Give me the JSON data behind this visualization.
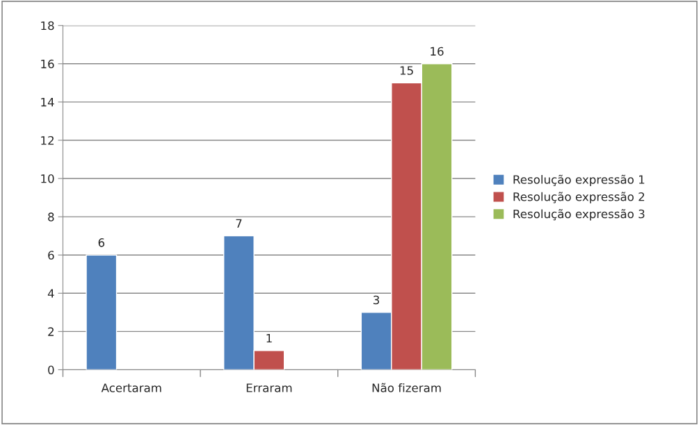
{
  "chart_data": {
    "type": "bar",
    "categories": [
      "Acertaram",
      "Erraram",
      "Não fizeram"
    ],
    "series": [
      {
        "name": "Resolução expressão 1",
        "color": "#4f81bd",
        "values": [
          6,
          7,
          3
        ]
      },
      {
        "name": "Resolução expressão 2",
        "color": "#c0504d",
        "values": [
          null,
          1,
          15
        ]
      },
      {
        "name": "Resolução expressão 3",
        "color": "#9bbb59",
        "values": [
          null,
          null,
          16
        ]
      }
    ],
    "ylim": [
      0,
      18
    ],
    "yticks": [
      0,
      2,
      4,
      6,
      8,
      10,
      12,
      14,
      16,
      18
    ],
    "grid": "y",
    "legend": "right",
    "data_labels": true
  }
}
